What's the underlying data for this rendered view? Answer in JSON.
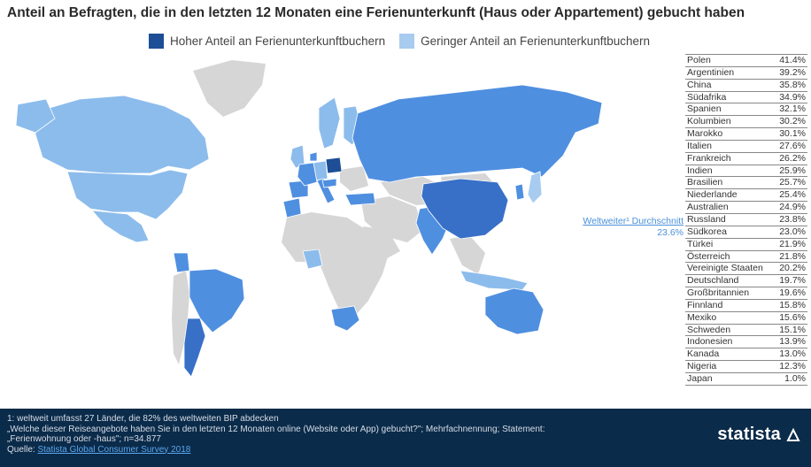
{
  "title": "Anteil an Befragten, die in den letzten 12 Monaten eine Ferienunterkunft (Haus oder Appartement) gebucht haben",
  "legend": {
    "high": "Hoher Anteil an Ferienunterkunftbuchern",
    "low": "Geringer Anteil an Ferienunterkunftbuchern"
  },
  "colors": {
    "high_strong": "#1d4e96",
    "high": "#4f8fe0",
    "low": "#8cbcec",
    "no_data": "#d6d6d6",
    "footer": "#0b2b4a"
  },
  "average": {
    "label": "Weltweiter¹ Durchschnitt",
    "value": "23.6%"
  },
  "countries": [
    {
      "name": "Polen",
      "value": "41.4%"
    },
    {
      "name": "Argentinien",
      "value": "39.2%"
    },
    {
      "name": "China",
      "value": "35.8%"
    },
    {
      "name": "Südafrika",
      "value": "34.9%"
    },
    {
      "name": "Spanien",
      "value": "32.1%"
    },
    {
      "name": "Kolumbien",
      "value": "30.2%"
    },
    {
      "name": "Marokko",
      "value": "30.1%"
    },
    {
      "name": "Italien",
      "value": "27.6%"
    },
    {
      "name": "Frankreich",
      "value": "26.2%"
    },
    {
      "name": "Indien",
      "value": "25.9%"
    },
    {
      "name": "Brasilien",
      "value": "25.7%"
    },
    {
      "name": "Niederlande",
      "value": "25.4%"
    },
    {
      "name": "Australien",
      "value": "24.9%"
    },
    {
      "name": "Russland",
      "value": "23.8%"
    },
    {
      "name": "Südkorea",
      "value": "23.0%"
    },
    {
      "name": "Türkei",
      "value": "21.9%"
    },
    {
      "name": "Österreich",
      "value": "21.8%"
    },
    {
      "name": "Vereinigte Staaten",
      "value": "20.2%"
    },
    {
      "name": "Deutschland",
      "value": "19.7%"
    },
    {
      "name": "Großbritannien",
      "value": "19.6%"
    },
    {
      "name": "Finnland",
      "value": "15.8%"
    },
    {
      "name": "Mexiko",
      "value": "15.6%"
    },
    {
      "name": "Schweden",
      "value": "15.1%"
    },
    {
      "name": "Indonesien",
      "value": "13.9%"
    },
    {
      "name": "Kanada",
      "value": "13.0%"
    },
    {
      "name": "Nigeria",
      "value": "12.3%"
    },
    {
      "name": "Japan",
      "value": "1.0%"
    }
  ],
  "footer": {
    "note1": "1: weltweit umfasst 27 Länder, die 82% des weltweiten BIP abdecken",
    "note2": "„Welche dieser Reiseangebote haben Sie in den letzten 12 Monaten online (Website oder App) gebucht?\"; Mehrfachnennung; Statement:",
    "note3": "„Ferienwohnung oder -haus\"; n=34.877",
    "source_prefix": "Quelle: ",
    "source_link": "Statista Global Consumer Survey 2018",
    "logo": "statista"
  }
}
